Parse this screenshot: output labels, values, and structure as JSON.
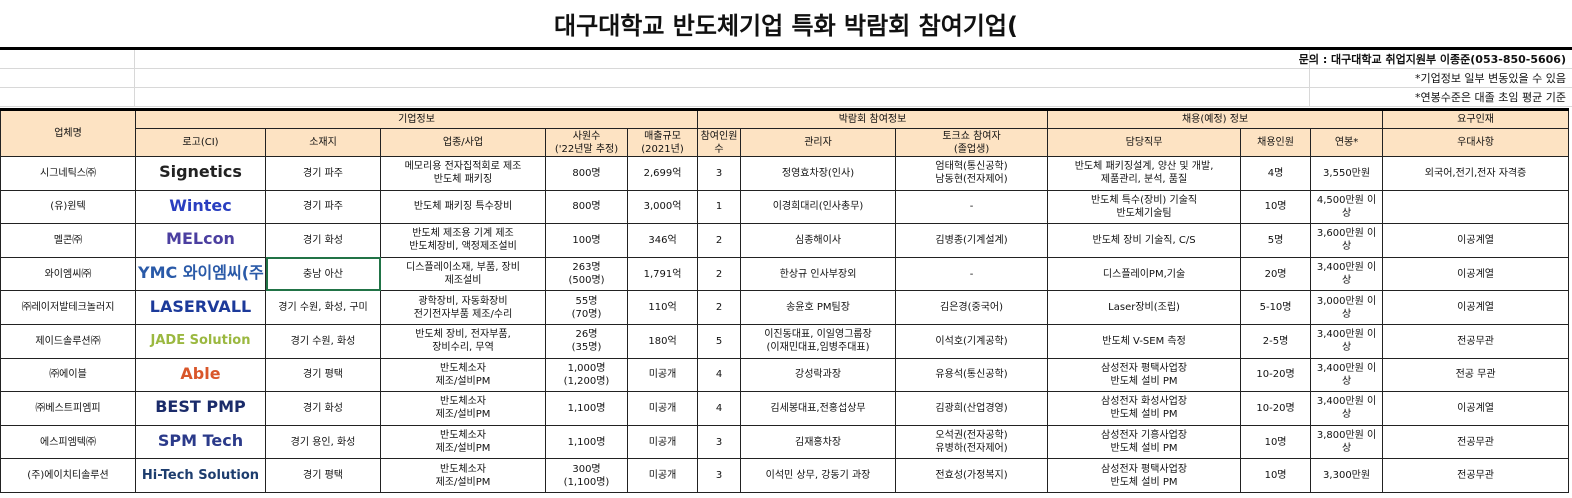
{
  "title": "대구대학교 반도체기업 특화 박람회 참여기업(",
  "notes": [
    "문의 : 대구대학교 취업지원부 이종준(053-850-5606)",
    "*기업정보 일부 변동있을 수 있음",
    "*연봉수준은 대졸 초임 평균 기준"
  ],
  "groups": {
    "company": "업체명",
    "info": "기업정보",
    "fair": "박람회 참여정보",
    "hire": "채용(예정) 정보",
    "req": "요구인재"
  },
  "headers": [
    "로고(CI)",
    "소재지",
    "업종/사업",
    "사원수\n('22년말 추정)",
    "매출규모\n(2021년)",
    "참여인원\n수",
    "관리자",
    "토크쇼 참여자\n(졸업생)",
    "담당직무",
    "채용인원",
    "연봉*",
    "우대사항"
  ],
  "rows": [
    {
      "name": "시그네틱스㈜",
      "logo": "Signetics",
      "logo_color": "#222",
      "loc": "경기 파주",
      "biz": "메모리용 전자집적회로 제조\n반도체 패키징",
      "emp": "800명",
      "rev": "2,699억",
      "num": "3",
      "mgr": "정영효차장(인사)",
      "talk": "엄태혁(통신공학)\n남동현(전자제어)",
      "job": "반도체 패키징설계, 양산 및 개발,\n제품관리, 분석, 품질",
      "hire": "4명",
      "pay": "3,550만원",
      "pref": "외국어,전기,전자 자격증"
    },
    {
      "name": "(유)윈텍",
      "logo": "Wintec",
      "logo_color": "#2a3fc0",
      "loc": "경기 파주",
      "biz": "반도체 패키징 특수장비",
      "emp": "800명",
      "rev": "3,000억",
      "num": "1",
      "mgr": "이경희대리(인사총무)",
      "talk": "-",
      "job": "반도체 특수(장비) 기술직\n반도체기술팀",
      "hire": "10명",
      "pay": "4,500만원 이상",
      "pref": ""
    },
    {
      "name": "멜콘㈜",
      "logo": "MELcon",
      "logo_color": "#4b3fa0",
      "loc": "경기 화성",
      "biz": "반도체 제조용 기계 제조\n반도체장비, 액정제조설비",
      "emp": "100명",
      "rev": "346억",
      "num": "2",
      "mgr": "심종해이사",
      "talk": "김병종(기계설계)",
      "job": "반도체 장비 기술직, C/S",
      "hire": "5명",
      "pay": "3,600만원 이상",
      "pref": "이공계열"
    },
    {
      "name": "와이엠씨㈜",
      "logo": "YMC 와이엠씨(주)",
      "logo_color": "#2a5aa8",
      "loc": "충남 아산",
      "biz": "디스플레이소재, 부품, 장비\n제조설비",
      "emp": "263명\n(500명)",
      "rev": "1,791억",
      "num": "2",
      "mgr": "한상규 인사부장외",
      "talk": "-",
      "job": "디스플레이PM,기술",
      "hire": "20명",
      "pay": "3,400만원 이상",
      "pref": "이공계열"
    },
    {
      "name": "㈜레이저발테크놀러지",
      "logo": "LASERVALL",
      "logo_color": "#1c3a9a",
      "loc": "경기 수원, 화성, 구미",
      "biz": "광학장비, 자동화장비\n전기전자부품 제조/수리",
      "emp": "55명\n(70명)",
      "rev": "110억",
      "num": "2",
      "mgr": "송윤호 PM팀장",
      "talk": "김은경(중국어)",
      "job": "Laser장비(조립)",
      "hire": "5-10명",
      "pay": "3,000만원 이상",
      "pref": "이공계열"
    },
    {
      "name": "제이드솔루션㈜",
      "logo": "JADE Solution",
      "logo_color": "#9bb840",
      "loc": "경기 수원, 화성",
      "biz": "반도체 장비, 전자부품,\n장비수리, 무역",
      "emp": "26명\n(35명)",
      "rev": "180억",
      "num": "5",
      "mgr": "이진동대표, 이일영그룹장\n(이재민대표,임병주대표)",
      "talk": "이석호(기계공학)",
      "job": "반도체 V-SEM 측정",
      "hire": "2-5명",
      "pay": "3,400만원 이상",
      "pref": "전공무관"
    },
    {
      "name": "㈜에이블",
      "logo": "Able",
      "logo_color": "#d9562a",
      "loc": "경기 평택",
      "biz": "반도체소자\n제조/설비PM",
      "emp": "1,000명\n(1,200명)",
      "rev": "미공개",
      "num": "4",
      "mgr": "강성락과장",
      "talk": "유용석(통신공학)",
      "job": "삼성전자 평택사업장\n반도체 설비 PM",
      "hire": "10-20명",
      "pay": "3,400만원 이상",
      "pref": "전공 무관"
    },
    {
      "name": "㈜베스트피엠피",
      "logo": "BEST PMP",
      "logo_color": "#1a2b6a",
      "loc": "경기 화성",
      "biz": "반도체소자\n제조/설비PM",
      "emp": "1,100명",
      "rev": "미공개",
      "num": "4",
      "mgr": "김세봉대표,전홍섭상무",
      "talk": "김광희(산업경영)",
      "job": "삼성전자 화성사업장\n반도체 설비 PM",
      "hire": "10-20명",
      "pay": "3,400만원 이상",
      "pref": "이공계열"
    },
    {
      "name": "에스피엠텍㈜",
      "logo": "SPM Tech",
      "logo_color": "#2b3a8a",
      "loc": "경기 용인, 화성",
      "biz": "반도체소자\n제조/설비PM",
      "emp": "1,100명",
      "rev": "미공개",
      "num": "3",
      "mgr": "김재홍차장",
      "talk": "오석권(전자공학)\n유병하(전자제어)",
      "job": "삼성전자 기흥사업장\n반도체 설비 PM",
      "hire": "10명",
      "pay": "3,800만원 이상",
      "pref": "전공무관"
    },
    {
      "name": "(주)에이치티솔루션",
      "logo": "Hi-Tech Solution",
      "logo_color": "#1d3d6e",
      "loc": "경기 평택",
      "biz": "반도체소자\n제조/설비PM",
      "emp": "300명\n(1,100명)",
      "rev": "미공개",
      "num": "3",
      "mgr": "이석민 상무, 강동기 과장",
      "talk": "전효성(가정복지)",
      "job": "삼성전자 평택사업장\n반도체 설비 PM",
      "hire": "10명",
      "pay": "3,300만원",
      "pref": "전공무관"
    }
  ]
}
